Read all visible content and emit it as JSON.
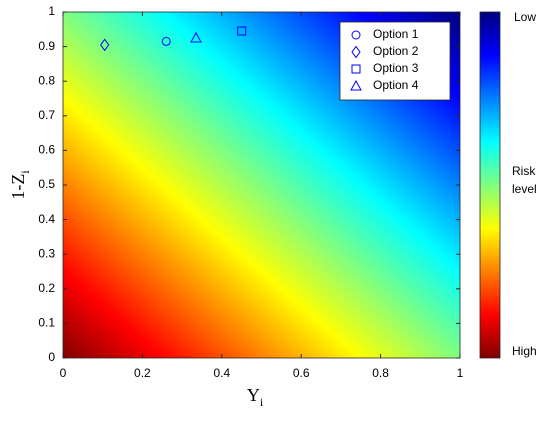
{
  "chart_data": {
    "type": "scatter",
    "xlabel": "Y",
    "xlabel_sub": "i",
    "ylabel": "1-Z",
    "ylabel_sub": "i",
    "xlim": [
      0,
      1
    ],
    "ylim": [
      0,
      1
    ],
    "xticks": [
      0,
      0.2,
      0.4,
      0.6,
      0.8,
      1
    ],
    "yticks": [
      0,
      0.1,
      0.2,
      0.3,
      0.4,
      0.5,
      0.6,
      0.7,
      0.8,
      0.9,
      1
    ],
    "grid": false,
    "legend": "northeast",
    "colormap": "jet",
    "colorbar_labels": {
      "top": "Low",
      "middle": [
        "Risk",
        "level"
      ],
      "bottom": "High"
    },
    "series": [
      {
        "name": "Option 1",
        "marker": "circle",
        "color": "#0000ff",
        "x": [
          0.26
        ],
        "values": [
          0.915
        ]
      },
      {
        "name": "Option 2",
        "marker": "diamond",
        "color": "#0000ff",
        "x": [
          0.105
        ],
        "values": [
          0.905
        ]
      },
      {
        "name": "Option 3",
        "marker": "square",
        "color": "#0000ff",
        "x": [
          0.45
        ],
        "values": [
          0.945
        ]
      },
      {
        "name": "Option 4",
        "marker": "triangle",
        "color": "#0000ff",
        "x": [
          0.335
        ],
        "values": [
          0.925
        ]
      }
    ]
  }
}
